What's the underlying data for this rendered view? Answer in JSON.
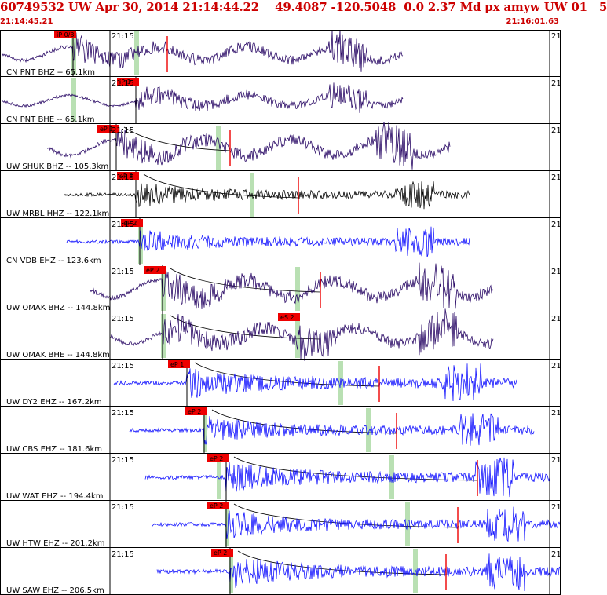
{
  "header": {
    "title": "60749532 UW Apr 30, 2014 21:14:44.22    49.4087 -120.5048  0.0 2.37 Md px amyw UW 01   5",
    "start_time": "21:14:45.21",
    "end_time": "21:16:01.63"
  },
  "colors": {
    "header_text": "#cc0000",
    "pick_flag": "#ee0000",
    "pick_line": "#ee0000",
    "window_band": "#b9e0b3",
    "trace_bh": "#2a0a66",
    "trace_hh": "#000000",
    "trace_eh": "#1414ff",
    "minute_tick": "#000000"
  },
  "chart_data": {
    "type": "line",
    "title": "60749532 UW Apr 30, 2014 21:14:44.22    49.4087 -120.5048  0.0 2.37 Md px amyw UW 01   5",
    "x_range": [
      "21:14:45.21",
      "21:16:01.63"
    ],
    "minute_labels": [
      "21:15",
      "21"
    ],
    "series": [
      {
        "name": "CN PNT BHZ -- 65.1km",
        "pick": "iP 0/3",
        "component": "BH"
      },
      {
        "name": "CN PNT BHE -- 65.1km",
        "pick": "iP 1",
        "component": "BH"
      },
      {
        "name": "UW SHUK BHZ -- 105.3km",
        "pick": "eP 1",
        "component": "BH"
      },
      {
        "name": "UW MRBL HHZ -- 122.1km",
        "pick": "eP 2",
        "component": "HH"
      },
      {
        "name": "CN VDB EHZ -- 123.6km",
        "pick": "eP 2",
        "component": "EH"
      },
      {
        "name": "UW OMAK BHZ -- 144.8km",
        "pick": "eP 2",
        "component": "BH"
      },
      {
        "name": "UW OMAK BHE -- 144.8km",
        "pick": "eS 2",
        "component": "BH"
      },
      {
        "name": "UW DY2 EHZ -- 167.2km",
        "pick": "eP 1",
        "component": "EH"
      },
      {
        "name": "UW CBS EHZ -- 181.6km",
        "pick": "eP 2",
        "component": "EH"
      },
      {
        "name": "UW WAT EHZ -- 194.4km",
        "pick": "eP 2",
        "component": "EH"
      },
      {
        "name": "UW HTW EHZ -- 201.2km",
        "pick": "eP 2",
        "component": "EH"
      },
      {
        "name": "UW SAW EHZ -- 206.5km",
        "pick": "eP 2",
        "component": "EH"
      }
    ]
  }
}
